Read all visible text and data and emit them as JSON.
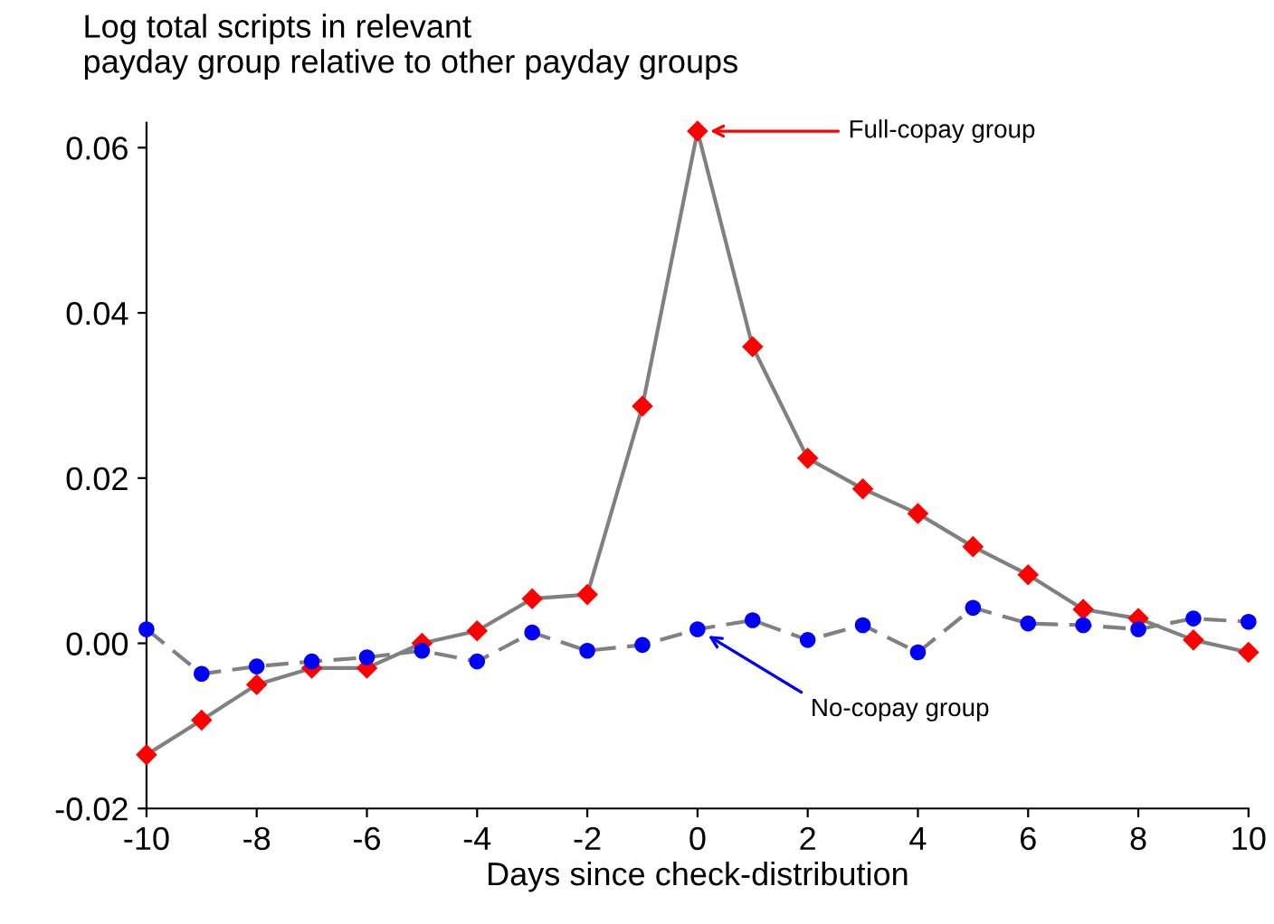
{
  "chart_data": {
    "type": "line",
    "ylabel": "Log total scripts in relevant\npayday group relative to other payday groups",
    "xlabel": "Days since check-distribution",
    "x": [
      -10,
      -9,
      -8,
      -7,
      -6,
      -5,
      -4,
      -3,
      -2,
      -1,
      0,
      1,
      2,
      3,
      4,
      5,
      6,
      7,
      8,
      9,
      10
    ],
    "series": [
      {
        "color": "#ff0000",
        "marker": "diamond",
        "line_style": "solid",
        "values": [
          -0.0135,
          -0.0093,
          -0.005,
          -0.003,
          -0.003,
          0.0,
          0.0015,
          0.0054,
          0.0059,
          0.0287,
          0.062,
          0.0359,
          0.0224,
          0.0187,
          0.0157,
          0.0117,
          0.0083,
          0.0041,
          0.003,
          0.0004,
          -0.0011
        ]
      },
      {
        "color": "#0000ff",
        "marker": "circle",
        "line_style": "dashed",
        "values": [
          0.0017,
          -0.0037,
          -0.0028,
          -0.0022,
          -0.0017,
          -0.0009,
          -0.0022,
          0.0013,
          -0.0009,
          -0.0002,
          0.0017,
          0.0028,
          0.0004,
          0.0022,
          -0.0011,
          0.0043,
          0.0024,
          0.0022,
          0.0017,
          0.003,
          0.0026
        ]
      }
    ],
    "annotations": [
      {
        "text": "Full-copay group",
        "x": 0,
        "y": 0.062
      },
      {
        "text": "No-copay group",
        "x": 0,
        "y": 0.0017
      }
    ],
    "xlim": [
      -10,
      10
    ],
    "xticks": [
      -10,
      -8,
      -6,
      -4,
      -2,
      0,
      2,
      4,
      6,
      8,
      10
    ],
    "ylim": [
      -0.02,
      0.063
    ],
    "yticks": [
      {
        "value": -0.02,
        "label": "-0.02"
      },
      {
        "value": 0,
        "label": "0.00"
      },
      {
        "value": 0.02,
        "label": "0.02"
      },
      {
        "value": 0.04,
        "label": "0.04"
      },
      {
        "value": 0.06,
        "label": "0.06"
      }
    ],
    "grid": false,
    "legend": false
  }
}
